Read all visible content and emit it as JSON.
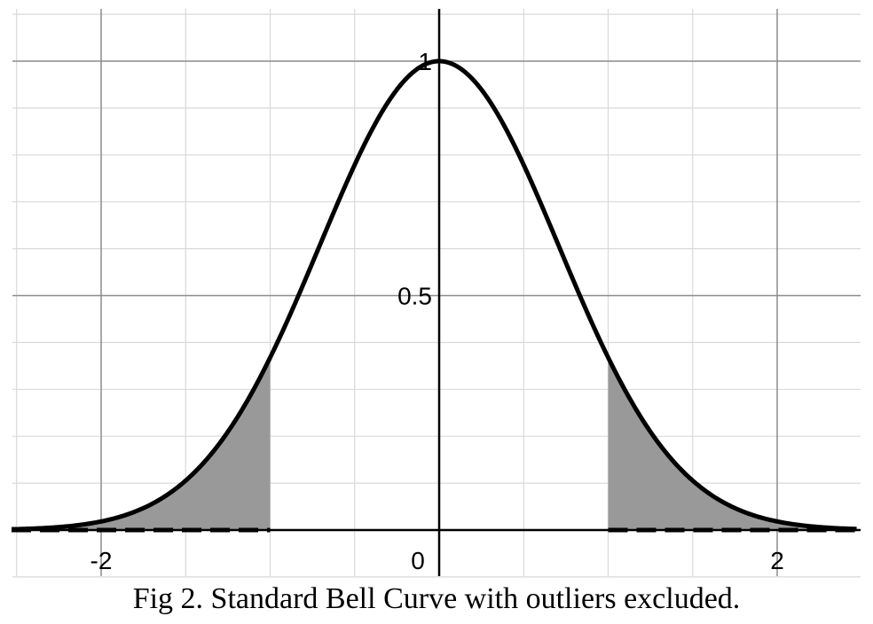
{
  "caption": "Fig 2. Standard Bell Curve with outliers excluded.",
  "colors": {
    "background": "#ffffff",
    "minor_grid": "#d9d9d9",
    "major_grid": "#8c8c8c",
    "axis": "#000000",
    "curve": "#000000",
    "shade": "#999999"
  },
  "chart_data": {
    "type": "area",
    "title": "",
    "xlabel": "",
    "ylabel": "",
    "xlim": [
      -2.53,
      2.47
    ],
    "ylim": [
      -0.1,
      1.1
    ],
    "x_major_ticks": [
      -2,
      0,
      2
    ],
    "x_tick_labels": [
      "-2",
      "0",
      "2"
    ],
    "y_major_ticks": [
      0.5,
      1
    ],
    "y_tick_labels": [
      "0.5",
      "1"
    ],
    "x_minor_step": 0.5,
    "y_minor_step": 0.1,
    "grid": true,
    "curve": {
      "function": "exp(-x^2)",
      "x_from": -2.53,
      "x_to": 2.47,
      "peak": [
        0,
        1
      ]
    },
    "shaded_regions": [
      {
        "from": -2.53,
        "to": -1.0
      },
      {
        "from": 1.0,
        "to": 2.47
      }
    ],
    "dashed_baseline_segments": [
      {
        "from": -2.53,
        "to": -1.0
      },
      {
        "from": 1.0,
        "to": 2.47
      }
    ]
  }
}
